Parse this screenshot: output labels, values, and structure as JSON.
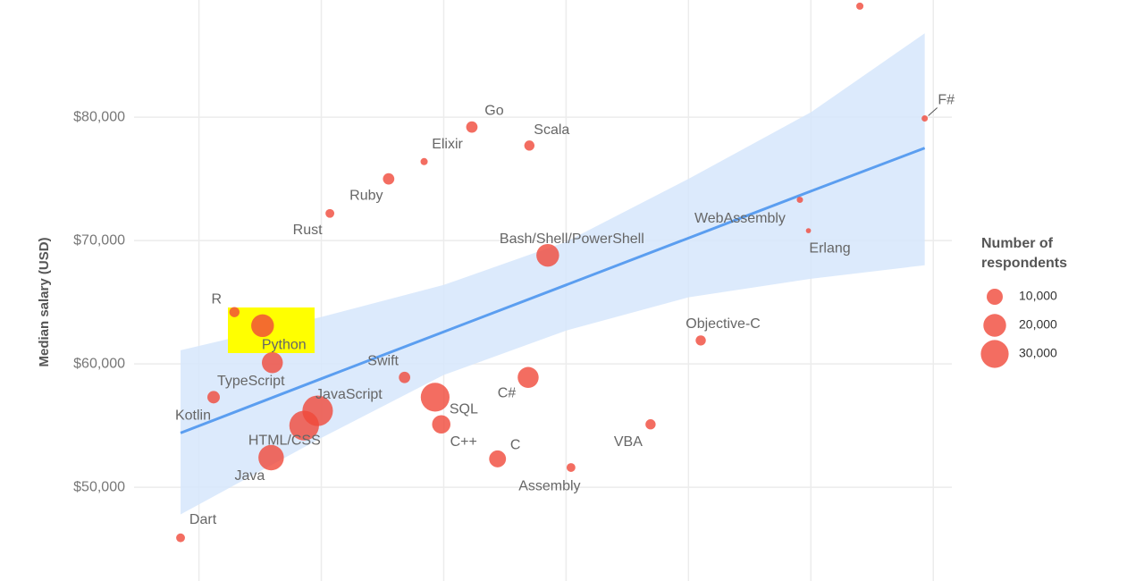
{
  "chart_data": {
    "type": "scatter",
    "y_label": "Median salary (USD)",
    "labels": [
      "Dart",
      "R",
      "Python",
      "TypeScript",
      "Kotlin",
      "JavaScript",
      "HTML/CSS",
      "Java",
      "Rust",
      "Ruby",
      "Elixir",
      "Go",
      "Scala",
      "Bash/Shell/PowerShell",
      "Swift",
      "SQL",
      "C++",
      "C#",
      "C",
      "Assembly",
      "VBA",
      "Objective-C",
      "WebAssembly",
      "Erlang",
      "F#",
      null
    ],
    "x": [
      4.85,
      5.29,
      5.52,
      5.6,
      5.12,
      5.97,
      5.86,
      5.59,
      6.07,
      6.55,
      6.84,
      7.23,
      7.7,
      7.85,
      6.68,
      6.93,
      6.98,
      7.69,
      7.44,
      8.04,
      8.69,
      9.1,
      9.91,
      9.98,
      10.93,
      10.4
    ],
    "y": [
      45900,
      64200,
      63100,
      60100,
      57300,
      56200,
      55000,
      52400,
      72200,
      75000,
      76400,
      79200,
      77700,
      68800,
      58900,
      57300,
      55100,
      58900,
      52300,
      51600,
      55100,
      61900,
      73300,
      70800,
      79900,
      89000
    ],
    "sizes": [
      3000,
      4000,
      20000,
      17000,
      6000,
      36000,
      34000,
      25000,
      3000,
      5000,
      2000,
      5000,
      4000,
      20000,
      5000,
      32000,
      13000,
      17000,
      11000,
      3000,
      4000,
      4000,
      1500,
      1000,
      1500,
      2000
    ],
    "color": "#f0493a",
    "trend": {
      "x": [
        4.85,
        6,
        7,
        8,
        9,
        10,
        10.93
      ],
      "y": [
        54400,
        58800,
        62600,
        66400,
        70200,
        74000,
        77500
      ],
      "upper": [
        61100,
        63800,
        66400,
        69900,
        75000,
        80400,
        86800
      ],
      "lower": [
        47800,
        54000,
        59100,
        62700,
        65400,
        66900,
        68000
      ],
      "color": "#5b9ef0",
      "band_color": "#d6e6fb"
    },
    "xlim": [
      3.55,
      12.78
    ],
    "ylim": [
      42400,
      89500
    ],
    "xticks": [
      5,
      6,
      7,
      8,
      9,
      10,
      11
    ],
    "yticks": [
      {
        "value": 50000,
        "label": "$50,000"
      },
      {
        "value": 60000,
        "label": "$60,000"
      },
      {
        "value": 70000,
        "label": "$70,000"
      },
      {
        "value": 80000,
        "label": "$80,000"
      }
    ],
    "grid": true,
    "legend": {
      "title": "Number of respondents",
      "position": "right",
      "sizes": [
        {
          "value": 10000,
          "label": "10,000"
        },
        {
          "value": 20000,
          "label": "20,000"
        },
        {
          "value": 30000,
          "label": "30,000"
        }
      ]
    }
  }
}
